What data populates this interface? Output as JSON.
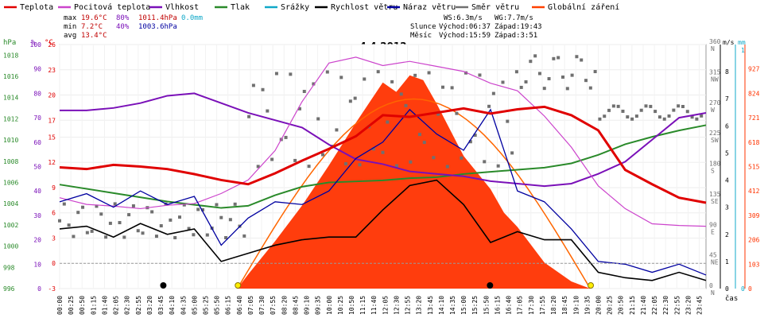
{
  "chart_data": {
    "type": "line",
    "title": "4.4.2012",
    "legend": [
      {
        "label": "Teplota",
        "color": "#e00000"
      },
      {
        "label": "Pocitová teplota",
        "color": "#cc44cc"
      },
      {
        "label": "Vlhkost",
        "color": "#7a10b8"
      },
      {
        "label": "Tlak",
        "color": "#2a8a2a"
      },
      {
        "label": "Srážky",
        "color": "#10a8c8"
      },
      {
        "label": "Rychlost větru",
        "color": "#000000"
      },
      {
        "label": "Náraz větru",
        "color": "#0000a0"
      },
      {
        "label": "Směr větru",
        "color": "#707070"
      },
      {
        "label": "Globální záření",
        "color": "#ff4000"
      }
    ],
    "legend_placement": "top",
    "stats": {
      "max": {
        "label": "max",
        "temp": "19.6°C",
        "hum": "80%",
        "press": "1011.4hPa",
        "rain": "0.0mm"
      },
      "min": {
        "label": "min",
        "temp": "7.2°C",
        "hum": "40%",
        "press": "1003.6hPa"
      },
      "avg": {
        "label": "avg",
        "temp": "13.4°C"
      }
    },
    "info": {
      "ws": "WS:6.3m/s",
      "wg": "WG:7.7m/s",
      "sun_label": "Slunce",
      "sun_rise": "Východ:06:37",
      "sun_set": "Západ:19:43",
      "moon_label": "Měsíc",
      "moon_rise": "Východ:15:59",
      "moon_set": "Západ:3:51"
    },
    "axes_units": {
      "pressure": "hPa",
      "humidity": "%",
      "temperature": "°C",
      "wind_speed": "m/s",
      "rain": "mm",
      "radiation": "W/m²",
      "time": "čas"
    },
    "pressure_ticks": [
      996,
      998,
      1000,
      1002,
      1004,
      1006,
      1008,
      1010,
      1012,
      1014,
      1016,
      1018
    ],
    "humidity_ticks": [
      0,
      10,
      20,
      30,
      40,
      50,
      60,
      70,
      80,
      90,
      100
    ],
    "temp_ticks": [
      -3,
      0,
      3,
      6,
      9,
      12,
      15,
      17,
      20,
      23,
      26
    ],
    "direction_ticks": [
      {
        "deg": 0,
        "label": "N"
      },
      {
        "deg": 45,
        "label": "NE"
      },
      {
        "deg": 90,
        "label": "E"
      },
      {
        "deg": 135,
        "label": "SE"
      },
      {
        "deg": 180,
        "label": "S"
      },
      {
        "deg": 225,
        "label": "SW"
      },
      {
        "deg": 270,
        "label": "W"
      },
      {
        "deg": 315,
        "label": "NW"
      },
      {
        "deg": 360,
        "label": "N"
      }
    ],
    "wind_ticks": [
      0,
      1,
      2,
      3,
      4,
      5,
      6,
      7,
      8
    ],
    "radiation_ticks": [
      0,
      103,
      206,
      309,
      412,
      515,
      618,
      721,
      824,
      927
    ],
    "rain_ticks": [
      0,
      1
    ],
    "ylim": {
      "pressure": [
        996,
        1019
      ],
      "humidity": [
        0,
        100
      ],
      "temperature": [
        -3,
        26
      ],
      "direction": [
        0,
        360
      ],
      "wind": [
        0,
        9
      ],
      "radiation": [
        0,
        1030
      ]
    },
    "time_labels": [
      "00:00",
      "00:25",
      "00:50",
      "01:15",
      "01:40",
      "02:05",
      "02:30",
      "02:55",
      "03:20",
      "03:45",
      "04:10",
      "04:35",
      "05:00",
      "05:25",
      "05:50",
      "06:15",
      "06:40",
      "07:05",
      "07:30",
      "07:55",
      "08:20",
      "08:45",
      "09:10",
      "09:35",
      "10:00",
      "10:25",
      "10:50",
      "11:15",
      "11:40",
      "12:05",
      "12:30",
      "12:55",
      "13:20",
      "13:45",
      "14:10",
      "14:35",
      "15:00",
      "15:25",
      "15:50",
      "16:15",
      "16:40",
      "17:05",
      "17:30",
      "17:55",
      "18:20",
      "18:45",
      "19:10",
      "19:35",
      "20:00",
      "20:25",
      "20:50",
      "21:15",
      "21:40",
      "22:05",
      "22:30",
      "22:55",
      "23:20",
      "23:45"
    ],
    "series": [
      {
        "name": "Teplota",
        "unit": "°C",
        "x": [
          0,
          1,
          2,
          3,
          4,
          5,
          6,
          7,
          8,
          9,
          10,
          11,
          12,
          13,
          14,
          15,
          16,
          17,
          18,
          19,
          20,
          21,
          22,
          23,
          24
        ],
        "y": [
          11.4,
          11.2,
          11.7,
          11.5,
          11.2,
          10.6,
          9.9,
          9.4,
          10.7,
          12.2,
          13.6,
          15.1,
          17.6,
          17.4,
          17.9,
          18.4,
          17.8,
          18.3,
          18.6,
          17.6,
          15.8,
          11.1,
          9.4,
          7.8,
          7.2
        ]
      },
      {
        "name": "Pocitová teplota",
        "unit": "°C",
        "x": [
          0,
          1,
          2,
          3,
          4,
          5,
          6,
          7,
          8,
          9,
          10,
          11,
          12,
          13,
          14,
          15,
          16,
          17,
          18,
          19,
          20,
          21,
          22,
          23,
          24
        ],
        "y": [
          7.8,
          7.0,
          6.8,
          6.5,
          6.9,
          7.1,
          8.3,
          9.9,
          13.4,
          19.2,
          23.8,
          24.5,
          23.5,
          24.0,
          23.4,
          22.8,
          21.4,
          20.5,
          17.5,
          13.8,
          9.2,
          6.5,
          4.7,
          4.5,
          4.4
        ]
      },
      {
        "name": "Vlhkost",
        "unit": "%",
        "x": [
          0,
          1,
          2,
          3,
          4,
          5,
          6,
          7,
          8,
          9,
          10,
          11,
          12,
          13,
          14,
          15,
          16,
          17,
          18,
          19,
          20,
          21,
          22,
          23,
          24
        ],
        "y": [
          73,
          73,
          74,
          76,
          79,
          80,
          76,
          72,
          69,
          66,
          59,
          53,
          51,
          48,
          47,
          46,
          44,
          43,
          42,
          43,
          47,
          52,
          61,
          70,
          72
        ]
      },
      {
        "name": "Tlak",
        "unit": "hPa",
        "x": [
          0,
          2,
          4,
          6,
          7,
          8,
          9,
          10,
          11,
          12,
          13,
          14,
          15,
          16,
          17,
          18,
          19,
          20,
          21,
          22,
          23,
          24
        ],
        "y": [
          1005.8,
          1005.0,
          1004.2,
          1003.6,
          1003.8,
          1004.8,
          1005.6,
          1006.0,
          1006.1,
          1006.2,
          1006.4,
          1006.5,
          1006.8,
          1007.0,
          1007.2,
          1007.4,
          1007.8,
          1008.6,
          1009.6,
          1010.3,
          1010.9,
          1011.4
        ]
      },
      {
        "name": "Rychlost větru",
        "unit": "m/s",
        "x": [
          0,
          1,
          2,
          3,
          4,
          5,
          6,
          7,
          8,
          9,
          10,
          11,
          12,
          13,
          14,
          15,
          16,
          17,
          18,
          19,
          20,
          21,
          22,
          23,
          24
        ],
        "y": [
          2.2,
          2.3,
          1.9,
          2.4,
          2.0,
          2.2,
          1.0,
          1.3,
          1.6,
          1.8,
          1.9,
          1.9,
          2.9,
          3.8,
          4.0,
          3.1,
          1.7,
          2.1,
          1.8,
          1.8,
          0.6,
          0.4,
          0.3,
          0.6,
          0.3
        ]
      },
      {
        "name": "Náraz větru",
        "unit": "m/s",
        "x": [
          0,
          1,
          2,
          3,
          4,
          5,
          6,
          7,
          8,
          9,
          10,
          11,
          12,
          13,
          14,
          15,
          16,
          17,
          18,
          19,
          20,
          21,
          22,
          23,
          24
        ],
        "y": [
          3.2,
          3.5,
          3.0,
          3.6,
          3.1,
          3.4,
          1.6,
          2.6,
          3.2,
          3.1,
          3.6,
          4.8,
          5.4,
          6.6,
          5.7,
          5.1,
          6.6,
          3.6,
          3.2,
          2.2,
          1.0,
          0.9,
          0.6,
          0.9,
          0.5
        ]
      },
      {
        "name": "Globální záření",
        "unit": "W/m²",
        "x": [
          6.6,
          7,
          8,
          9,
          10,
          11,
          12,
          12.5,
          13,
          13.5,
          14,
          15,
          16,
          16.5,
          17,
          18,
          19,
          19.7
        ],
        "y": [
          0,
          60,
          200,
          350,
          520,
          700,
          870,
          830,
          900,
          880,
          780,
          560,
          420,
          320,
          260,
          110,
          30,
          0
        ]
      }
    ],
    "theoretical_radiation": {
      "peak": 800,
      "start": 6.6,
      "end": 19.7
    },
    "markers": [
      {
        "kind": "moonset",
        "t": 3.85
      },
      {
        "kind": "sunrise",
        "t": 6.62
      },
      {
        "kind": "moonrise",
        "t": 15.98
      },
      {
        "kind": "sunset",
        "t": 19.72
      }
    ]
  }
}
